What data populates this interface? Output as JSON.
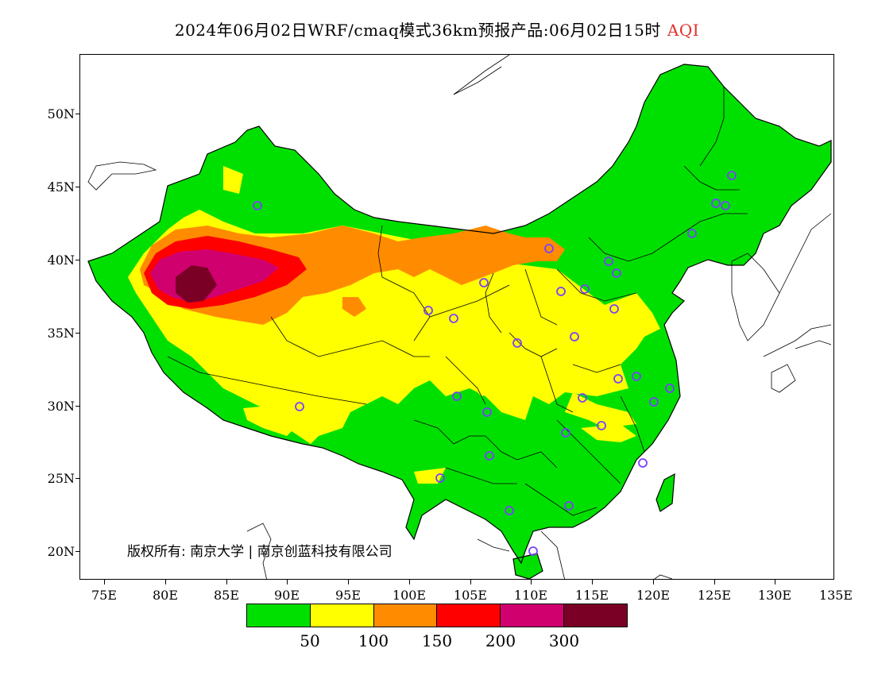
{
  "header": {
    "title": "2024年06月02日WRF/cmaq模式36km预报产品:06月02日15时",
    "variable": "AQI"
  },
  "map": {
    "y_axis_labels": [
      "50N",
      "45N",
      "40N",
      "35N",
      "30N",
      "25N",
      "20N"
    ],
    "x_axis_labels": [
      "75E",
      "80E",
      "85E",
      "90E",
      "95E",
      "100E",
      "105E",
      "110E",
      "115E",
      "120E",
      "125E",
      "130E",
      "135E"
    ],
    "copyright": "版权所有: 南京大学 | 南京创蓝科技有限公司",
    "colors": {
      "good": "#00e000",
      "moderate": "#ffff00",
      "sensitive": "#ff8c00",
      "unhealthy": "#ff0000",
      "very_unhealthy": "#d0006f",
      "hazardous": "#7a0025",
      "station_marker": "#7a40ff"
    }
  },
  "legend": {
    "colors": [
      "#00e000",
      "#ffff00",
      "#ff8c00",
      "#ff0000",
      "#d0006f",
      "#7a0025"
    ],
    "labels": [
      "50",
      "100",
      "150",
      "200",
      "300"
    ]
  }
}
